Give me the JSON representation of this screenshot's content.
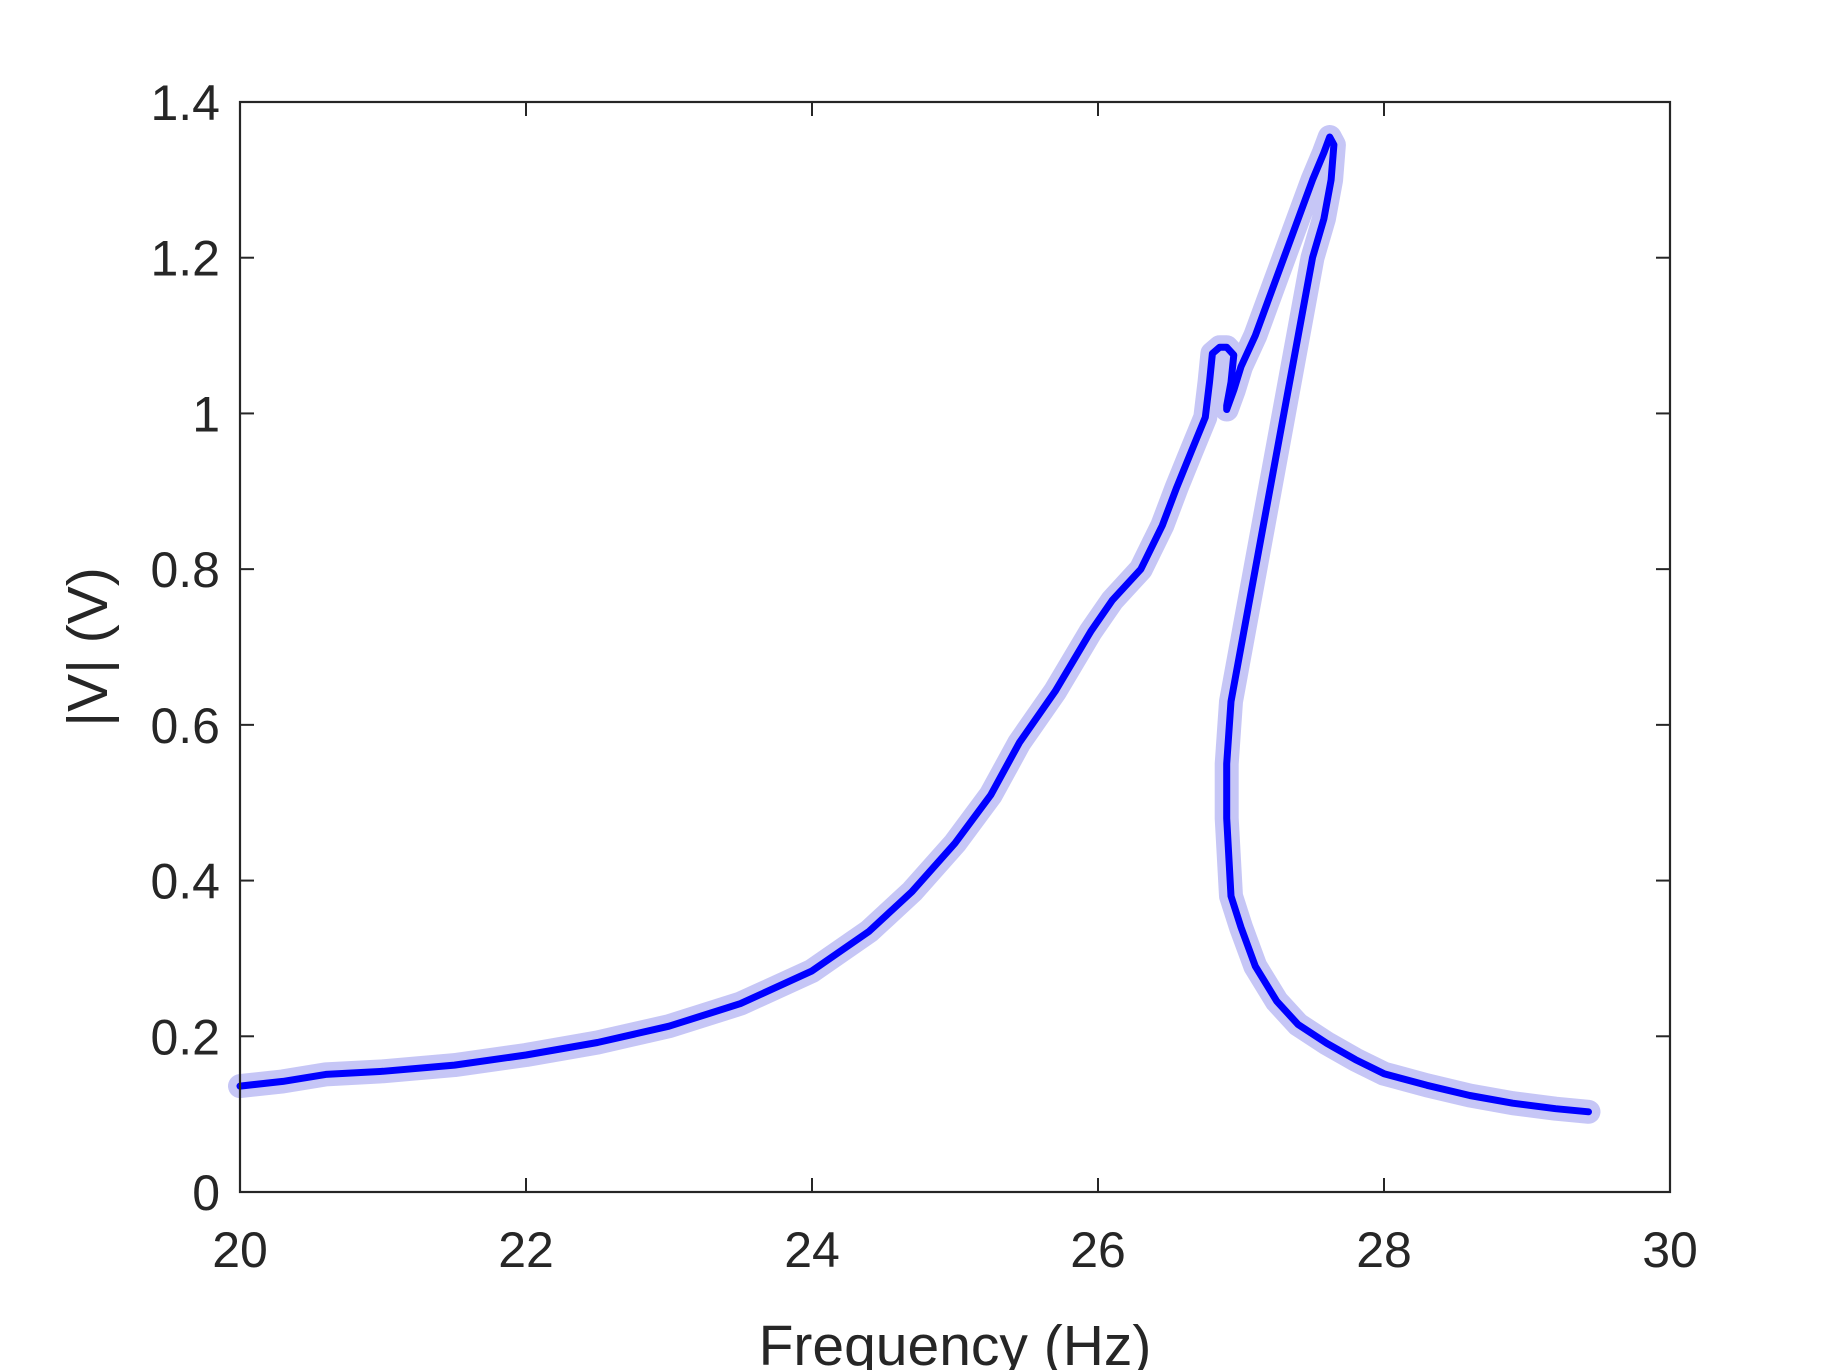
{
  "chart_data": {
    "type": "line",
    "title": "",
    "xlabel": "Frequency (Hz)",
    "ylabel": "|V| (V)",
    "xlim": [
      20,
      30
    ],
    "ylim": [
      0,
      1.4
    ],
    "xticks": [
      20,
      22,
      24,
      26,
      28,
      30
    ],
    "xtick_labels": [
      "20",
      "22",
      "24",
      "26",
      "28",
      "30"
    ],
    "yticks": [
      0,
      0.2,
      0.4,
      0.6,
      0.8,
      1.0,
      1.2,
      1.4
    ],
    "ytick_labels": [
      "0",
      "0.2",
      "0.4",
      "0.6",
      "0.8",
      "1",
      "1.2",
      "1.4"
    ],
    "grid": false,
    "legend": "none",
    "colors": {
      "line": "#0000ff",
      "band": "#bcbcf5",
      "axis": "#262626"
    },
    "series": [
      {
        "x": [
          20.0,
          20.3,
          20.6,
          21.0,
          21.5,
          22.0,
          22.5,
          23.0,
          23.5,
          24.0,
          24.4,
          24.7,
          25.0,
          25.25,
          25.45,
          25.7,
          25.95,
          26.1,
          26.3,
          26.45,
          26.55,
          26.65,
          26.75,
          26.78,
          26.8,
          26.85,
          26.9,
          26.95,
          26.93,
          26.9,
          26.9,
          26.95,
          27.0,
          27.1,
          27.2,
          27.3,
          27.4,
          27.5,
          27.58,
          27.62,
          27.65,
          27.63,
          27.58,
          27.5,
          27.4,
          27.3,
          27.2,
          27.1,
          27.0,
          26.93,
          26.9,
          26.9,
          26.93,
          27.0,
          27.1,
          27.25,
          27.4,
          27.6,
          27.8,
          28.0,
          28.3,
          28.6,
          28.9,
          29.2,
          29.43
        ],
        "y": [
          0.136,
          0.142,
          0.151,
          0.155,
          0.163,
          0.176,
          0.192,
          0.213,
          0.242,
          0.284,
          0.335,
          0.386,
          0.448,
          0.51,
          0.577,
          0.643,
          0.72,
          0.76,
          0.8,
          0.856,
          0.905,
          0.95,
          0.995,
          1.04,
          1.077,
          1.085,
          1.085,
          1.075,
          1.04,
          1.01,
          1.005,
          1.03,
          1.06,
          1.1,
          1.15,
          1.2,
          1.25,
          1.3,
          1.335,
          1.355,
          1.345,
          1.3,
          1.25,
          1.2,
          1.1,
          1.0,
          0.9,
          0.8,
          0.7,
          0.63,
          0.55,
          0.48,
          0.38,
          0.34,
          0.29,
          0.245,
          0.215,
          0.191,
          0.17,
          0.152,
          0.137,
          0.124,
          0.114,
          0.107,
          0.103
        ]
      }
    ]
  }
}
